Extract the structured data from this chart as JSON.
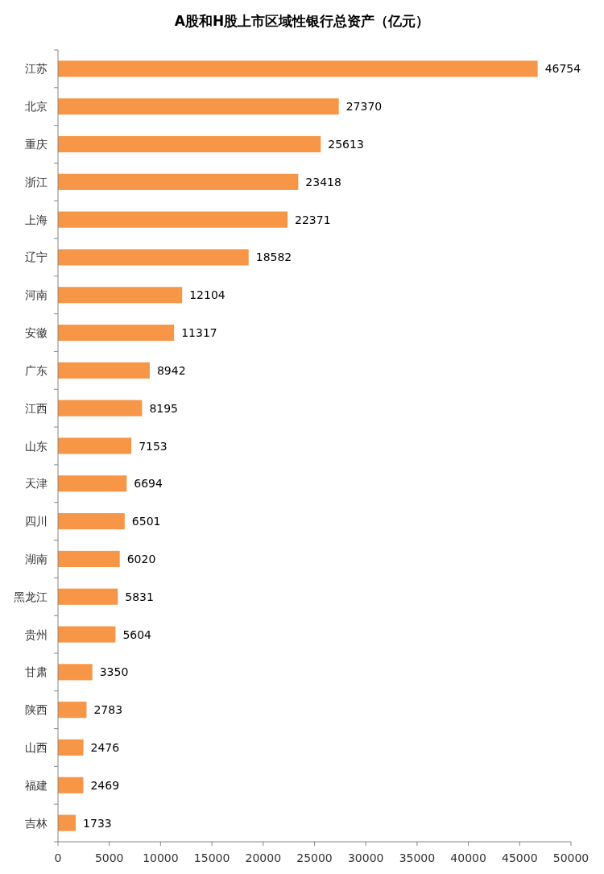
{
  "chart_data": {
    "type": "bar",
    "orientation": "horizontal",
    "title": "A股和H股上市区域性银行总资产（亿元）",
    "categories": [
      "江苏",
      "北京",
      "重庆",
      "浙江",
      "上海",
      "辽宁",
      "河南",
      "安徽",
      "广东",
      "江西",
      "山东",
      "天津",
      "四川",
      "湖南",
      "黑龙江",
      "贵州",
      "甘肃",
      "陕西",
      "山西",
      "福建",
      "吉林"
    ],
    "values": [
      46754,
      27370,
      25613,
      23418,
      22371,
      18582,
      12104,
      11317,
      8942,
      8195,
      7153,
      6694,
      6501,
      6020,
      5831,
      5604,
      3350,
      2783,
      2476,
      2469,
      1733
    ],
    "color": "#f79646",
    "data_labels": true,
    "grid": false,
    "xlim": [
      0,
      50000
    ],
    "xticks": [
      0,
      5000,
      10000,
      15000,
      20000,
      25000,
      30000,
      35000,
      40000,
      45000,
      50000
    ]
  }
}
